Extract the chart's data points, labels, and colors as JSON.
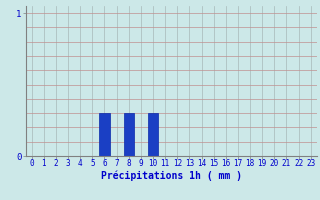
{
  "hours": [
    0,
    1,
    2,
    3,
    4,
    5,
    6,
    7,
    8,
    9,
    10,
    11,
    12,
    13,
    14,
    15,
    16,
    17,
    18,
    19,
    20,
    21,
    22,
    23
  ],
  "values": [
    0,
    0,
    0,
    0,
    0,
    0,
    0.3,
    0,
    0.3,
    0,
    0.3,
    0,
    0,
    0,
    0,
    0,
    0,
    0,
    0,
    0,
    0,
    0,
    0,
    0
  ],
  "bar_color": "#1a3fc4",
  "bar_edge_color": "#0a2aaa",
  "background_color": "#cce8e8",
  "grid_color_h": "#c09090",
  "grid_color_v": "#a8b8b8",
  "xlabel": "Précipitations 1h ( mm )",
  "xlabel_color": "#0000cc",
  "xlabel_fontsize": 7,
  "tick_color": "#0000cc",
  "tick_fontsize": 5.5,
  "ytick_labels": [
    "0",
    "1"
  ],
  "ytick_values": [
    0,
    1
  ],
  "ylim": [
    0,
    1.05
  ],
  "xlim": [
    -0.5,
    23.5
  ],
  "axis_color": "#808080",
  "h_grid_values": [
    0.1,
    0.2,
    0.3,
    0.4,
    0.5,
    0.6,
    0.7,
    0.8,
    0.9,
    1.0
  ]
}
